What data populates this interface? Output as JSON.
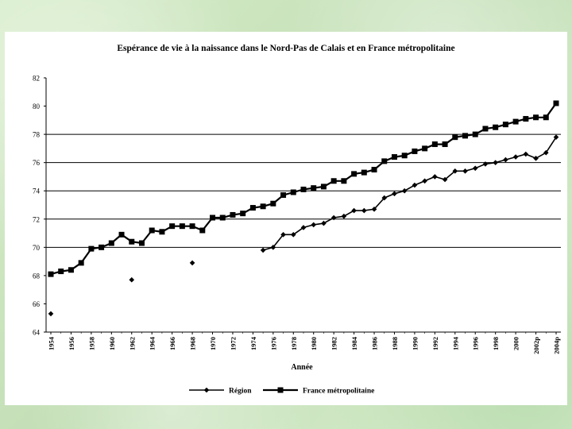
{
  "chart_data": {
    "type": "line",
    "title": "Espérance de vie à la naissance dans le Nord-Pas de Calais et en France métropolitaine",
    "xlabel": "Année",
    "ylabel": "",
    "ylim": [
      64,
      82
    ],
    "yticks": [
      "82",
      "80",
      "78",
      "76",
      "74",
      "72",
      "70",
      "68",
      "66",
      "64"
    ],
    "xtick_labels": [
      "1954",
      "1956",
      "1958",
      "1960",
      "1962",
      "1964",
      "1966",
      "1968",
      "1970",
      "1972",
      "1974",
      "1976",
      "1978",
      "1980",
      "1982",
      "1984",
      "1986",
      "1988",
      "1990",
      "1992",
      "1994",
      "1996",
      "1998",
      "2000",
      "2002p",
      "2004p"
    ],
    "gridlines": [
      70,
      72,
      74,
      76,
      78
    ],
    "legend_position": "bottom",
    "series": [
      {
        "name": "Région",
        "marker": "diamond",
        "color": "#000000",
        "points": [
          [
            1954,
            65.3
          ],
          [
            1962,
            67.7
          ],
          [
            1968,
            68.9
          ],
          [
            1975,
            69.8
          ],
          [
            1976,
            70.0
          ],
          [
            1977,
            70.9
          ],
          [
            1978,
            70.9
          ],
          [
            1979,
            71.4
          ],
          [
            1980,
            71.6
          ],
          [
            1981,
            71.7
          ],
          [
            1982,
            72.1
          ],
          [
            1983,
            72.2
          ],
          [
            1984,
            72.6
          ],
          [
            1985,
            72.6
          ],
          [
            1986,
            72.7
          ],
          [
            1987,
            73.5
          ],
          [
            1988,
            73.8
          ],
          [
            1989,
            74.0
          ],
          [
            1990,
            74.4
          ],
          [
            1991,
            74.7
          ],
          [
            1992,
            75.0
          ],
          [
            1993,
            74.8
          ],
          [
            1994,
            75.4
          ],
          [
            1995,
            75.4
          ],
          [
            1996,
            75.6
          ],
          [
            1997,
            75.9
          ],
          [
            1998,
            76.0
          ],
          [
            1999,
            76.2
          ],
          [
            2000,
            76.4
          ],
          [
            2001,
            76.6
          ],
          [
            2002,
            76.3
          ],
          [
            2003,
            76.7
          ],
          [
            2004,
            77.8
          ]
        ],
        "connected_from": 1975
      },
      {
        "name": "France métropolitaine",
        "marker": "square",
        "color": "#000000",
        "points": [
          [
            1954,
            68.1
          ],
          [
            1955,
            68.3
          ],
          [
            1956,
            68.4
          ],
          [
            1957,
            68.9
          ],
          [
            1958,
            69.9
          ],
          [
            1959,
            70.0
          ],
          [
            1960,
            70.3
          ],
          [
            1961,
            70.9
          ],
          [
            1962,
            70.4
          ],
          [
            1963,
            70.3
          ],
          [
            1964,
            71.2
          ],
          [
            1965,
            71.1
          ],
          [
            1966,
            71.5
          ],
          [
            1967,
            71.5
          ],
          [
            1968,
            71.5
          ],
          [
            1969,
            71.2
          ],
          [
            1970,
            72.1
          ],
          [
            1971,
            72.1
          ],
          [
            1972,
            72.3
          ],
          [
            1973,
            72.4
          ],
          [
            1974,
            72.8
          ],
          [
            1975,
            72.9
          ],
          [
            1976,
            73.1
          ],
          [
            1977,
            73.7
          ],
          [
            1978,
            73.9
          ],
          [
            1979,
            74.1
          ],
          [
            1980,
            74.2
          ],
          [
            1981,
            74.3
          ],
          [
            1982,
            74.7
          ],
          [
            1983,
            74.7
          ],
          [
            1984,
            75.2
          ],
          [
            1985,
            75.3
          ],
          [
            1986,
            75.5
          ],
          [
            1987,
            76.1
          ],
          [
            1988,
            76.4
          ],
          [
            1989,
            76.5
          ],
          [
            1990,
            76.8
          ],
          [
            1991,
            77.0
          ],
          [
            1992,
            77.3
          ],
          [
            1993,
            77.3
          ],
          [
            1994,
            77.8
          ],
          [
            1995,
            77.9
          ],
          [
            1996,
            78.0
          ],
          [
            1997,
            78.4
          ],
          [
            1998,
            78.5
          ],
          [
            1999,
            78.7
          ],
          [
            2000,
            78.9
          ],
          [
            2001,
            79.1
          ],
          [
            2002,
            79.2
          ],
          [
            2003,
            79.2
          ],
          [
            2004,
            80.2
          ]
        ]
      }
    ]
  }
}
